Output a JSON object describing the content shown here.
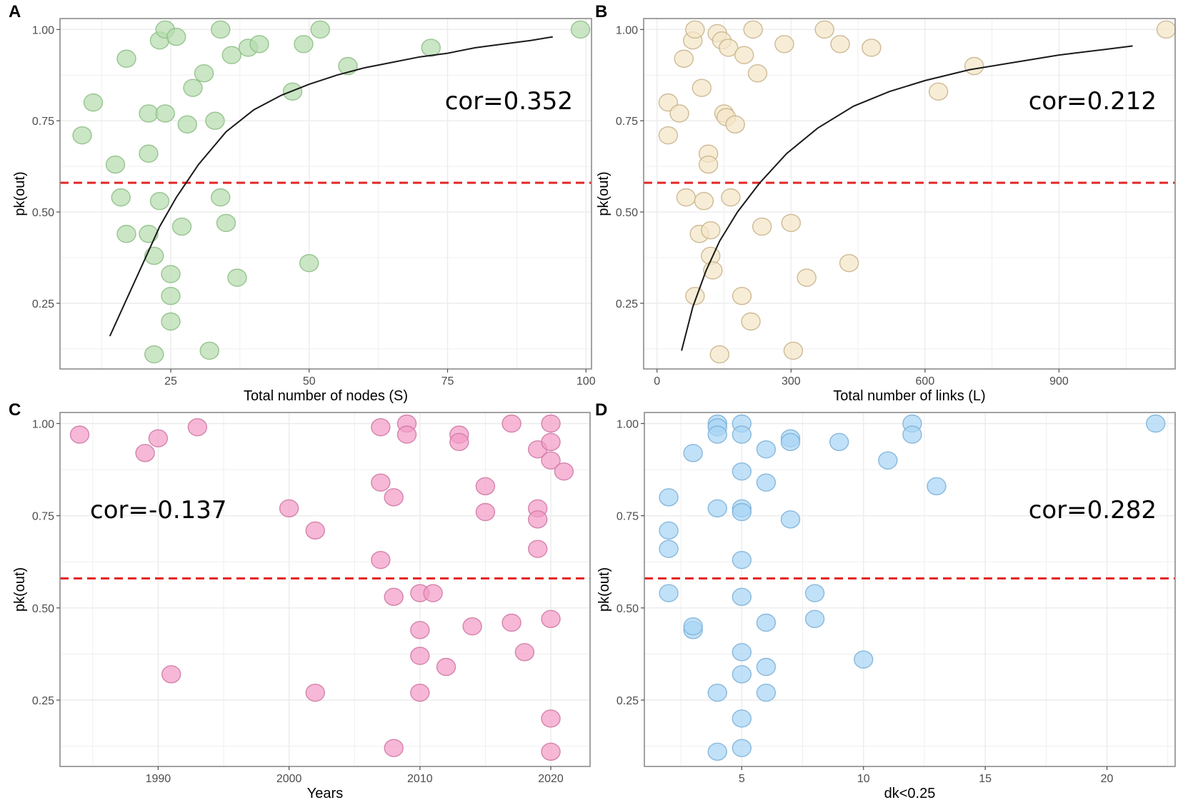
{
  "figure": {
    "colors": {
      "grid": "#ebebeb",
      "frame": "#8c8c8c",
      "threshold": "#e32626",
      "fit_line": "#1a1a1a"
    }
  },
  "chart_data": [
    {
      "type": "scatter",
      "panel": "A",
      "xlabel": "Total number of nodes (S)",
      "ylabel": "pk(out)",
      "xlim": [
        5,
        101
      ],
      "ylim": [
        0.07,
        1.03
      ],
      "xticks": [
        25,
        50,
        75,
        100
      ],
      "xtick_labels": [
        "25",
        "50",
        "75",
        "100"
      ],
      "yticks": [
        0.25,
        0.5,
        0.75,
        1.0
      ],
      "ytick_labels": [
        "0.25",
        "0.50",
        "0.75",
        "1.00"
      ],
      "annotation": "cor=0.352",
      "annotation_position": "top-right",
      "threshold": 0.58,
      "point_color": "#b6dcae",
      "point_stroke": "#8fbf86",
      "fit_curve": {
        "x": [
          14,
          17,
          20,
          23,
          26,
          30,
          35,
          40,
          45,
          50,
          55,
          60,
          65,
          70,
          75,
          80,
          85,
          90,
          94
        ],
        "y": [
          0.16,
          0.26,
          0.36,
          0.46,
          0.54,
          0.63,
          0.72,
          0.78,
          0.82,
          0.85,
          0.875,
          0.895,
          0.91,
          0.925,
          0.935,
          0.95,
          0.96,
          0.97,
          0.98
        ]
      },
      "points": {
        "x": [
          9,
          11,
          15,
          16,
          17,
          17,
          21,
          21,
          21,
          22,
          22,
          23,
          23,
          24,
          24,
          25,
          25,
          25,
          26,
          27,
          28,
          29,
          31,
          32,
          33,
          34,
          34,
          35,
          36,
          37,
          39,
          41,
          47,
          49,
          50,
          52,
          57,
          72,
          99
        ],
        "y": [
          0.71,
          0.8,
          0.63,
          0.54,
          0.92,
          0.44,
          0.77,
          0.66,
          0.44,
          0.38,
          0.11,
          0.97,
          0.53,
          0.77,
          1.0,
          0.33,
          0.27,
          0.2,
          0.98,
          0.46,
          0.74,
          0.84,
          0.88,
          0.12,
          0.75,
          0.54,
          1.0,
          0.47,
          0.93,
          0.32,
          0.95,
          0.96,
          0.83,
          0.96,
          0.36,
          1.0,
          0.9,
          0.95,
          1.0
        ]
      }
    },
    {
      "type": "scatter",
      "panel": "B",
      "xlabel": "Total number of links (L)",
      "ylabel": "pk(out)",
      "xlim": [
        -30,
        1160
      ],
      "ylim": [
        0.07,
        1.03
      ],
      "xticks": [
        0,
        300,
        600,
        900
      ],
      "xtick_labels": [
        "0",
        "300",
        "600",
        "900"
      ],
      "yticks": [
        0.25,
        0.5,
        0.75,
        1.0
      ],
      "ytick_labels": [
        "0.25",
        "0.50",
        "0.75",
        "1.00"
      ],
      "annotation": "cor=0.212",
      "annotation_position": "top-right",
      "threshold": 0.58,
      "point_color": "#f4e6c8",
      "point_stroke": "#c9b48c",
      "fit_curve": {
        "x": [
          55,
          80,
          110,
          140,
          180,
          230,
          290,
          360,
          440,
          520,
          600,
          700,
          800,
          900,
          1000,
          1065
        ],
        "y": [
          0.12,
          0.24,
          0.34,
          0.42,
          0.5,
          0.58,
          0.66,
          0.73,
          0.79,
          0.83,
          0.86,
          0.89,
          0.91,
          0.93,
          0.945,
          0.955
        ]
      },
      "points": {
        "x": [
          25,
          25,
          50,
          60,
          65,
          80,
          85,
          85,
          95,
          100,
          105,
          115,
          115,
          120,
          120,
          125,
          135,
          140,
          145,
          150,
          155,
          160,
          165,
          175,
          190,
          195,
          210,
          215,
          225,
          235,
          285,
          300,
          305,
          335,
          375,
          410,
          430,
          480,
          630,
          710,
          1140
        ],
        "y": [
          0.8,
          0.71,
          0.77,
          0.92,
          0.54,
          0.97,
          0.27,
          1.0,
          0.44,
          0.84,
          0.53,
          0.66,
          0.63,
          0.38,
          0.45,
          0.34,
          0.99,
          0.11,
          0.97,
          0.77,
          0.76,
          0.95,
          0.54,
          0.74,
          0.27,
          0.93,
          0.2,
          1.0,
          0.88,
          0.46,
          0.96,
          0.47,
          0.12,
          0.32,
          1.0,
          0.96,
          0.36,
          0.95,
          0.83,
          0.9,
          1.0
        ]
      }
    },
    {
      "type": "scatter",
      "panel": "C",
      "xlabel": "Years",
      "ylabel": "pk(out)",
      "xlim": [
        1982.5,
        2023
      ],
      "ylim": [
        0.07,
        1.03
      ],
      "xticks": [
        1990,
        2000,
        2010,
        2020
      ],
      "xtick_labels": [
        "1990",
        "2000",
        "2010",
        "2020"
      ],
      "yticks": [
        0.25,
        0.5,
        0.75,
        1.0
      ],
      "ytick_labels": [
        "0.25",
        "0.50",
        "0.75",
        "1.00"
      ],
      "annotation": "cor=-0.137",
      "annotation_position": "middle-left",
      "threshold": 0.58,
      "point_color": "#f29cc6",
      "point_stroke": "#d07aa6",
      "points": {
        "x": [
          1984,
          1989,
          1990,
          1991,
          1993,
          2000,
          2002,
          2002,
          2007,
          2007,
          2007,
          2008,
          2008,
          2008,
          2009,
          2009,
          2010,
          2010,
          2010,
          2010,
          2011,
          2012,
          2013,
          2013,
          2014,
          2015,
          2015,
          2017,
          2017,
          2018,
          2019,
          2019,
          2019,
          2019,
          2020,
          2020,
          2020,
          2020,
          2020,
          2020,
          2021
        ],
        "y": [
          0.97,
          0.92,
          0.96,
          0.32,
          0.99,
          0.77,
          0.71,
          0.27,
          0.99,
          0.84,
          0.63,
          0.8,
          0.53,
          0.12,
          1.0,
          0.97,
          0.54,
          0.44,
          0.37,
          0.27,
          0.54,
          0.34,
          0.97,
          0.95,
          0.45,
          0.83,
          0.76,
          1.0,
          0.46,
          0.38,
          0.93,
          0.77,
          0.74,
          0.66,
          1.0,
          0.95,
          0.9,
          0.47,
          0.2,
          0.11,
          0.87
        ]
      }
    },
    {
      "type": "scatter",
      "panel": "D",
      "xlabel": "dk<0.25",
      "ylabel": "pk(out)",
      "xlim": [
        1,
        22.8
      ],
      "ylim": [
        0.07,
        1.03
      ],
      "xticks": [
        5,
        10,
        15,
        20
      ],
      "xtick_labels": [
        "5",
        "10",
        "15",
        "20"
      ],
      "yticks": [
        0.25,
        0.5,
        0.75,
        1.0
      ],
      "ytick_labels": [
        "0.25",
        "0.50",
        "0.75",
        "1.00"
      ],
      "annotation": "cor=0.282",
      "annotation_position": "middle-right",
      "threshold": 0.58,
      "point_color": "#a9d6f5",
      "point_stroke": "#7fb3d8",
      "points": {
        "x": [
          2,
          2,
          2,
          2,
          3,
          3,
          3,
          4,
          4,
          4,
          4,
          4,
          4,
          5,
          5,
          5,
          5,
          5,
          5,
          5,
          5,
          5,
          5,
          5,
          6,
          6,
          6,
          6,
          6,
          7,
          7,
          7,
          8,
          8,
          9,
          10,
          11,
          12,
          12,
          13,
          22
        ],
        "y": [
          0.8,
          0.71,
          0.66,
          0.54,
          0.92,
          0.44,
          0.45,
          1.0,
          0.99,
          0.97,
          0.77,
          0.27,
          0.11,
          1.0,
          0.97,
          0.87,
          0.77,
          0.76,
          0.63,
          0.53,
          0.38,
          0.32,
          0.2,
          0.12,
          0.93,
          0.84,
          0.46,
          0.34,
          0.27,
          0.96,
          0.95,
          0.74,
          0.54,
          0.47,
          0.95,
          0.36,
          0.9,
          1.0,
          0.97,
          0.83,
          1.0
        ]
      }
    }
  ]
}
